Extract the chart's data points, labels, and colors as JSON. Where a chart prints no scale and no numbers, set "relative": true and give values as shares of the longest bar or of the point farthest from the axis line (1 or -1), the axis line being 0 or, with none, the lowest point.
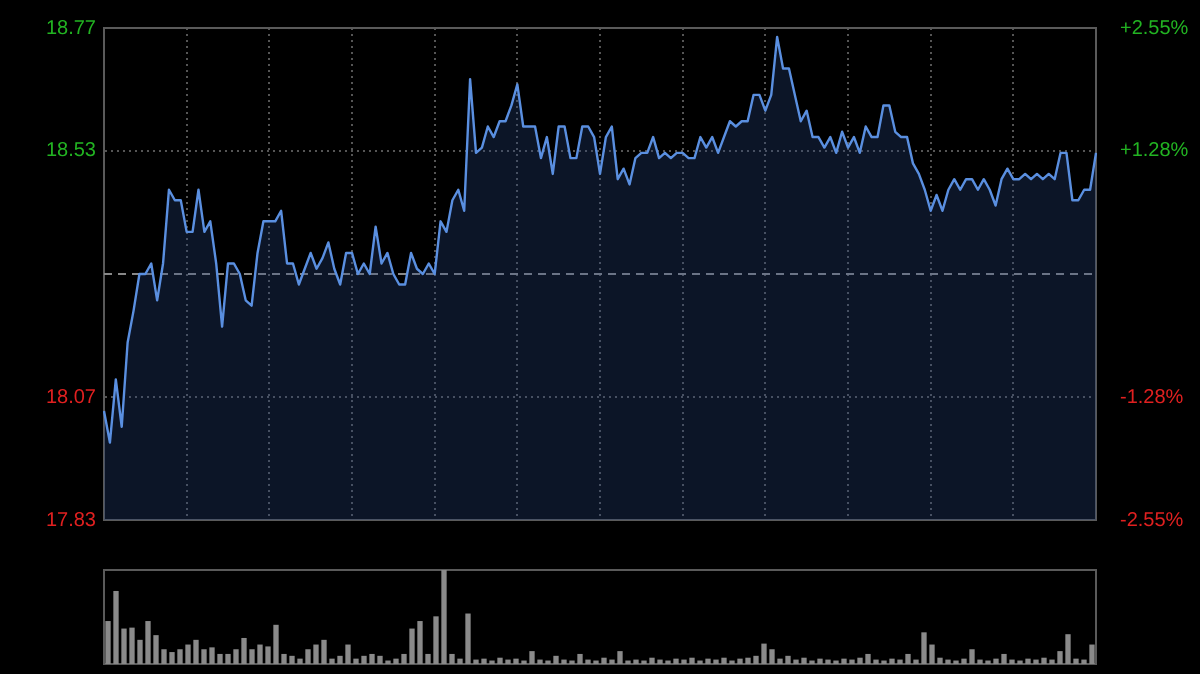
{
  "chart_data": [
    {
      "type": "area",
      "color": "#5a8fe0",
      "categories": [
        null,
        null,
        null,
        null,
        null,
        null,
        null,
        null,
        null,
        null,
        null,
        null,
        null,
        null,
        null,
        null,
        null,
        null,
        null,
        null,
        null,
        null,
        null,
        null,
        null,
        null,
        null,
        null,
        null,
        null,
        null,
        null,
        null,
        null,
        null,
        null,
        null,
        null,
        null,
        null,
        null,
        null,
        null,
        null,
        null,
        null,
        null,
        null,
        null,
        null,
        null,
        null,
        null,
        null,
        null,
        null,
        null,
        null,
        null,
        null,
        null,
        null,
        null,
        null,
        null,
        null,
        null,
        null,
        null,
        null,
        null,
        null,
        null,
        null,
        null,
        null,
        null,
        null,
        null,
        null,
        null,
        null,
        null,
        null,
        null,
        null,
        null,
        null,
        null,
        null,
        null,
        null,
        null,
        null,
        null,
        null,
        null,
        null,
        null,
        null,
        null,
        null,
        null,
        null,
        null,
        null,
        null,
        null,
        null,
        null,
        null,
        null,
        null,
        null,
        null,
        null,
        null,
        null,
        null,
        null,
        null,
        null,
        null,
        null,
        null,
        null,
        null,
        null,
        null,
        null,
        null,
        null,
        null,
        null,
        null,
        null,
        null,
        null,
        null,
        null,
        null,
        null,
        null,
        null,
        null,
        null,
        null,
        null,
        null,
        null,
        null,
        null,
        null,
        null,
        null,
        null,
        null,
        null,
        null,
        null,
        null,
        null,
        null,
        null,
        null,
        null,
        null,
        null,
        null
      ],
      "values": [
        18.04,
        17.98,
        18.1,
        18.01,
        18.17,
        18.23,
        18.3,
        18.3,
        18.32,
        18.25,
        18.32,
        18.46,
        18.44,
        18.44,
        18.38,
        18.38,
        18.46,
        18.38,
        18.4,
        18.32,
        18.2,
        18.32,
        18.32,
        18.3,
        18.25,
        18.24,
        18.34,
        18.4,
        18.4,
        18.4,
        18.42,
        18.32,
        18.32,
        18.28,
        18.31,
        18.34,
        18.31,
        18.33,
        18.36,
        18.31,
        18.28,
        18.34,
        18.34,
        18.3,
        18.32,
        18.3,
        18.39,
        18.32,
        18.34,
        18.3,
        18.28,
        18.28,
        18.34,
        18.31,
        18.3,
        18.32,
        18.3,
        18.4,
        18.38,
        18.44,
        18.46,
        18.42,
        18.67,
        18.53,
        18.54,
        18.58,
        18.56,
        18.59,
        18.59,
        18.62,
        18.66,
        18.58,
        18.58,
        18.58,
        18.52,
        18.56,
        18.49,
        18.58,
        18.58,
        18.52,
        18.52,
        18.58,
        18.58,
        18.56,
        18.49,
        18.56,
        18.58,
        18.48,
        18.5,
        18.47,
        18.52,
        18.53,
        18.53,
        18.56,
        18.52,
        18.53,
        18.52,
        18.53,
        18.53,
        18.52,
        18.52,
        18.56,
        18.54,
        18.56,
        18.53,
        18.56,
        18.59,
        18.58,
        18.59,
        18.59,
        18.64,
        18.64,
        18.61,
        18.64,
        18.75,
        18.69,
        18.69,
        18.64,
        18.59,
        18.61,
        18.56,
        18.56,
        18.54,
        18.56,
        18.53,
        18.57,
        18.54,
        18.56,
        18.53,
        18.58,
        18.56,
        18.56,
        18.62,
        18.62,
        18.57,
        18.56,
        18.56,
        18.51,
        18.49,
        18.46,
        18.42,
        18.45,
        18.42,
        18.46,
        18.48,
        18.46,
        18.48,
        18.48,
        18.46,
        18.48,
        18.46,
        18.43,
        18.48,
        18.5,
        18.48,
        18.48,
        18.49,
        18.48,
        18.49,
        18.48,
        18.49,
        18.48,
        18.53,
        18.53,
        18.44,
        18.44,
        18.46,
        18.46,
        18.53
      ],
      "ylim": [
        17.833,
        18.767
      ],
      "yticks": [
        {
          "value": 17.833,
          "label": "17.83"
        },
        {
          "value": 18.066,
          "label": "18.07"
        },
        {
          "value": 18.534,
          "label": "18.53"
        },
        {
          "value": 18.767,
          "label": "18.77"
        }
      ],
      "y2lim": [
        -2.55,
        2.55
      ],
      "y2ticks": [
        {
          "value": -2.55,
          "label": "-2.55%"
        },
        {
          "value": -1.28,
          "label": "-1.28%"
        },
        {
          "value": 1.28,
          "label": "+1.28%"
        },
        {
          "value": 2.55,
          "label": "+2.55%"
        }
      ],
      "ref_lines": [
        {
          "axis": "y",
          "value": 18.3,
          "line_style": "dashed"
        }
      ],
      "grid": true,
      "tick_labels": "y",
      "legend": false,
      "marker": "none"
    },
    {
      "type": "bar",
      "relative": true,
      "color": "#8a8a8a",
      "legend": false,
      "tick_labels": false,
      "categories": [
        null,
        null,
        null,
        null,
        null,
        null,
        null,
        null,
        null,
        null,
        null,
        null,
        null,
        null,
        null,
        null,
        null,
        null,
        null,
        null,
        null,
        null,
        null,
        null,
        null,
        null,
        null,
        null,
        null,
        null,
        null,
        null,
        null,
        null,
        null,
        null,
        null,
        null,
        null,
        null,
        null,
        null,
        null,
        null,
        null,
        null,
        null,
        null,
        null,
        null,
        null,
        null,
        null,
        null,
        null,
        null,
        null,
        null,
        null,
        null,
        null,
        null,
        null,
        null,
        null,
        null,
        null,
        null,
        null,
        null,
        null,
        null,
        null,
        null,
        null,
        null,
        null,
        null,
        null,
        null,
        null,
        null,
        null,
        null,
        null,
        null,
        null,
        null,
        null,
        null,
        null,
        null,
        null,
        null,
        null,
        null,
        null,
        null,
        null,
        null,
        null,
        null,
        null,
        null,
        null,
        null,
        null,
        null,
        null,
        null,
        null,
        null,
        null,
        null,
        null,
        null,
        null,
        null,
        null,
        null,
        null,
        null,
        null,
        null
      ],
      "values": [
        0.45,
        0.77,
        0.37,
        0.38,
        0.25,
        0.45,
        0.3,
        0.15,
        0.12,
        0.15,
        0.2,
        0.25,
        0.15,
        0.17,
        0.1,
        0.1,
        0.15,
        0.27,
        0.15,
        0.2,
        0.18,
        0.41,
        0.1,
        0.08,
        0.05,
        0.15,
        0.2,
        0.25,
        0.05,
        0.08,
        0.2,
        0.05,
        0.08,
        0.1,
        0.08,
        0.03,
        0.05,
        0.1,
        0.37,
        0.45,
        0.1,
        0.5,
        1,
        0.1,
        0.05,
        0.53,
        0.04,
        0.05,
        0.03,
        0.06,
        0.04,
        0.05,
        0.03,
        0.13,
        0.04,
        0.03,
        0.08,
        0.04,
        0.03,
        0.1,
        0.04,
        0.03,
        0.06,
        0.04,
        0.13,
        0.03,
        0.04,
        0.03,
        0.06,
        0.04,
        0.03,
        0.05,
        0.04,
        0.06,
        0.03,
        0.05,
        0.04,
        0.06,
        0.03,
        0.05,
        0.06,
        0.08,
        0.21,
        0.15,
        0.05,
        0.08,
        0.04,
        0.06,
        0.03,
        0.05,
        0.04,
        0.03,
        0.05,
        0.04,
        0.06,
        0.1,
        0.04,
        0.03,
        0.05,
        0.04,
        0.1,
        0.04,
        0.33,
        0.2,
        0.06,
        0.04,
        0.03,
        0.05,
        0.15,
        0.04,
        0.03,
        0.05,
        0.1,
        0.04,
        0.03,
        0.05,
        0.04,
        0.06,
        0.04,
        0.13,
        0.31,
        0.05,
        0.04,
        0.2
      ]
    }
  ]
}
